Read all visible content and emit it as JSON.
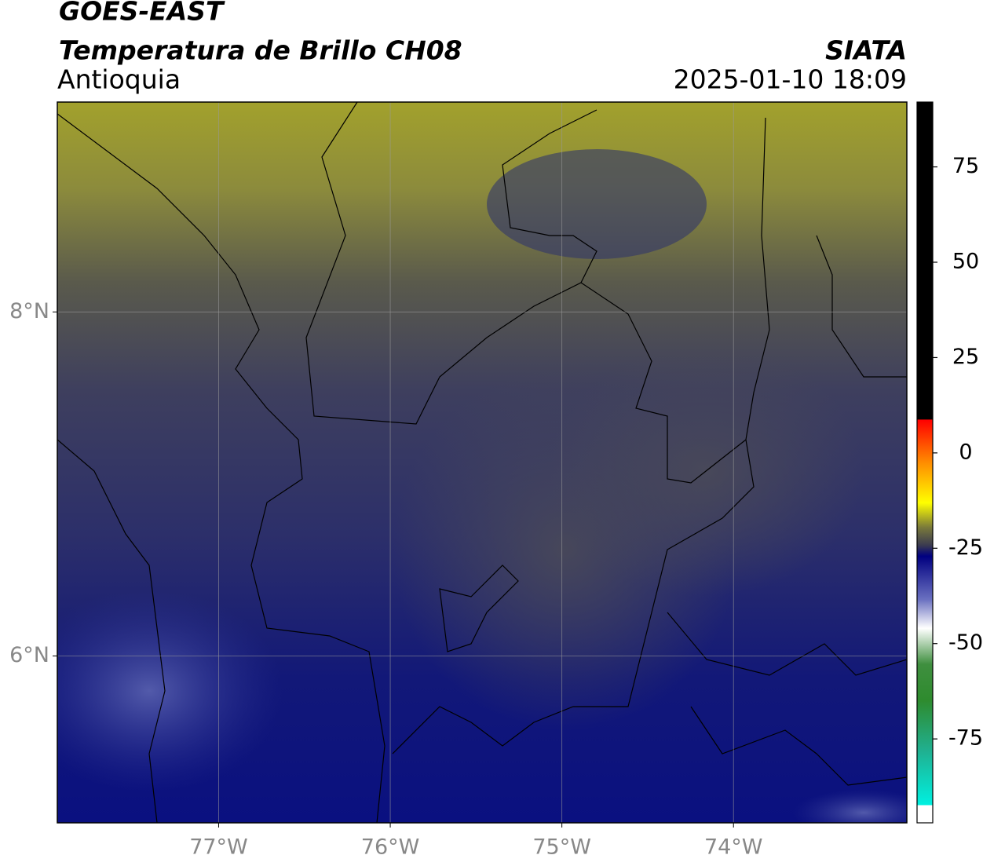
{
  "title": "GOES-EAST",
  "subtitle": "Temperatura de Brillo CH08",
  "region": "Antioquia",
  "source": "SIATA",
  "datetime": "2025-01-10 18:09",
  "map": {
    "lonlim": [
      -77.94,
      -72.99
    ],
    "latlim": [
      5.03,
      9.22
    ],
    "lon_ticks": [
      {
        "value": -77,
        "label": "77°W"
      },
      {
        "value": -76,
        "label": "76°W"
      },
      {
        "value": -75,
        "label": "75°W"
      },
      {
        "value": -74,
        "label": "74°W"
      }
    ],
    "lat_ticks": [
      {
        "value": 8,
        "label": "8°N"
      },
      {
        "value": 6,
        "label": "6°N"
      }
    ]
  },
  "colorbar": {
    "lim": [
      -97,
      92
    ],
    "ticks": [
      75,
      50,
      25,
      0,
      -25,
      -50,
      -75
    ]
  }
}
